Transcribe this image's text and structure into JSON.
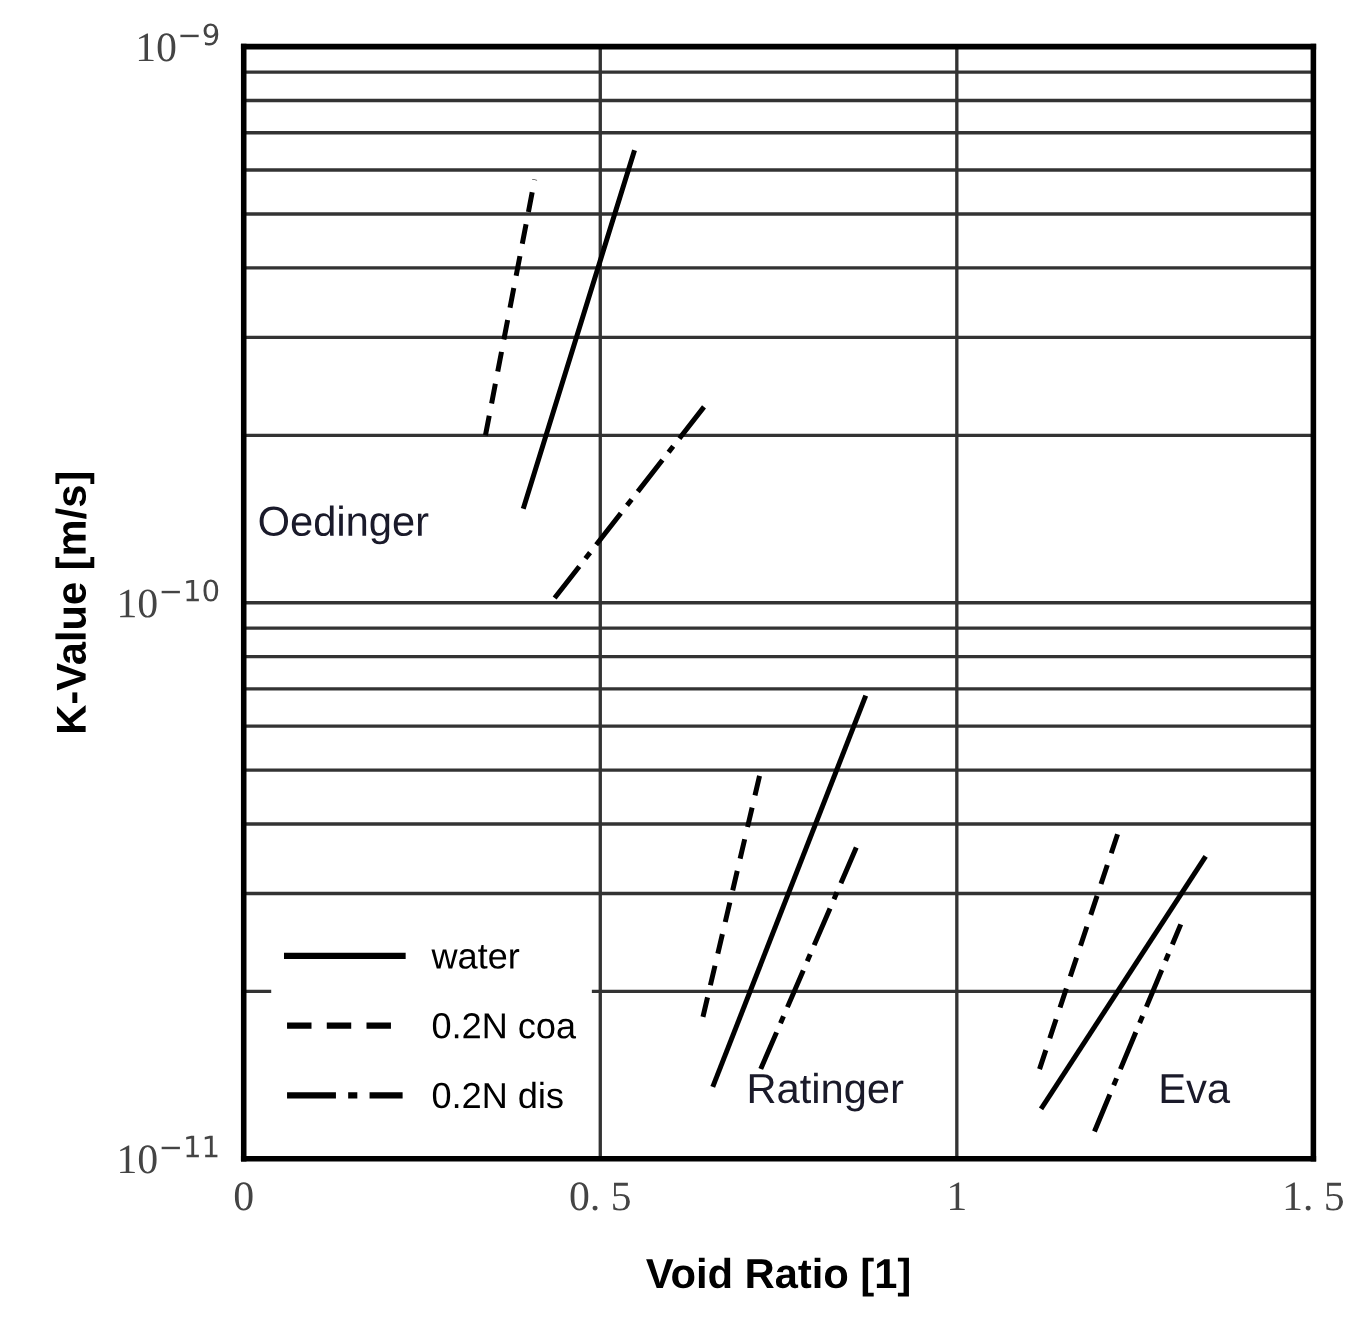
{
  "chart_data": {
    "type": "line",
    "xlabel": "Void Ratio [1]",
    "ylabel": "K-Value [m/s]",
    "log": "y",
    "grid": true,
    "legend": "bottom left",
    "marker": "none",
    "xlim": [
      0,
      1.5
    ],
    "ylim": [
      1e-11,
      1e-09
    ],
    "xticks": [
      0,
      {
        "value": 0.5,
        "label": "0. 5"
      },
      1,
      {
        "value": 1.5,
        "label": "1. 5"
      }
    ],
    "yticks": [
      {
        "value": 1e-11,
        "label": "10$^{−11}$"
      },
      {
        "value": 2e-11,
        "label": null
      },
      {
        "value": 3e-11,
        "label": null
      },
      {
        "value": 4e-11,
        "label": null
      },
      {
        "value": 5e-11,
        "label": null
      },
      {
        "value": 6e-11,
        "label": null
      },
      {
        "value": 7e-11,
        "label": null
      },
      {
        "value": 8e-11,
        "label": null
      },
      {
        "value": 9e-11,
        "label": null
      },
      {
        "value": 1e-10,
        "label": "10$^{−10}$"
      },
      {
        "value": 2e-10,
        "label": null
      },
      {
        "value": 3e-10,
        "label": null
      },
      {
        "value": 4e-10,
        "label": null
      },
      {
        "value": 5e-10,
        "label": null
      },
      {
        "value": 6e-10,
        "label": null
      },
      {
        "value": 7e-10,
        "label": null
      },
      {
        "value": 8e-10,
        "label": null
      },
      {
        "value": 9e-10,
        "label": null
      },
      {
        "value": 1e-09,
        "label": "10$^{−9}$"
      }
    ],
    "series": [
      {
        "name": "water",
        "color": "#000000",
        "line_style": "solid",
        "x": [
          0.393,
          0.547
        ],
        "values": [
          1.49e-10,
          6.45e-10
        ]
      },
      {
        "name": "0.2N coa",
        "color": "#000000",
        "line_style": "dashed",
        "x": [
          0.339,
          0.408
        ],
        "values": [
          2e-10,
          5.77e-10
        ]
      },
      {
        "name": "0.2N dis",
        "color": "#000000",
        "line_style": "dashdot",
        "x": [
          0.436,
          0.649
        ],
        "values": [
          1.02e-10,
          2.28e-10
        ]
      },
      {
        "color": "#000000",
        "line_style": "dashed",
        "x": [
          0.644,
          0.727
        ],
        "values": [
          1.8e-11,
          5.11e-11
        ]
      },
      {
        "color": "#000000",
        "line_style": "solid",
        "x": [
          0.659,
          0.871
        ],
        "values": [
          1.36e-11,
          6.74e-11
        ]
      },
      {
        "color": "#000000",
        "line_style": "dashdot",
        "x": [
          0.725,
          0.859
        ],
        "values": [
          1.45e-11,
          3.63e-11
        ]
      },
      {
        "color": "#000000",
        "line_style": "dashed",
        "x": [
          1.116,
          1.227
        ],
        "values": [
          1.45e-11,
          3.89e-11
        ]
      },
      {
        "color": "#000000",
        "line_style": "solid",
        "x": [
          1.12,
          1.347
        ],
        "values": [
          1.24e-11,
          3.47e-11
        ]
      },
      {
        "color": "#000000",
        "line_style": "dashdot",
        "x": [
          1.193,
          1.314
        ],
        "values": [
          1.12e-11,
          2.64e-11
        ]
      }
    ],
    "annotations": [
      "Oedinger",
      "Ratinger",
      "Eva"
    ]
  }
}
